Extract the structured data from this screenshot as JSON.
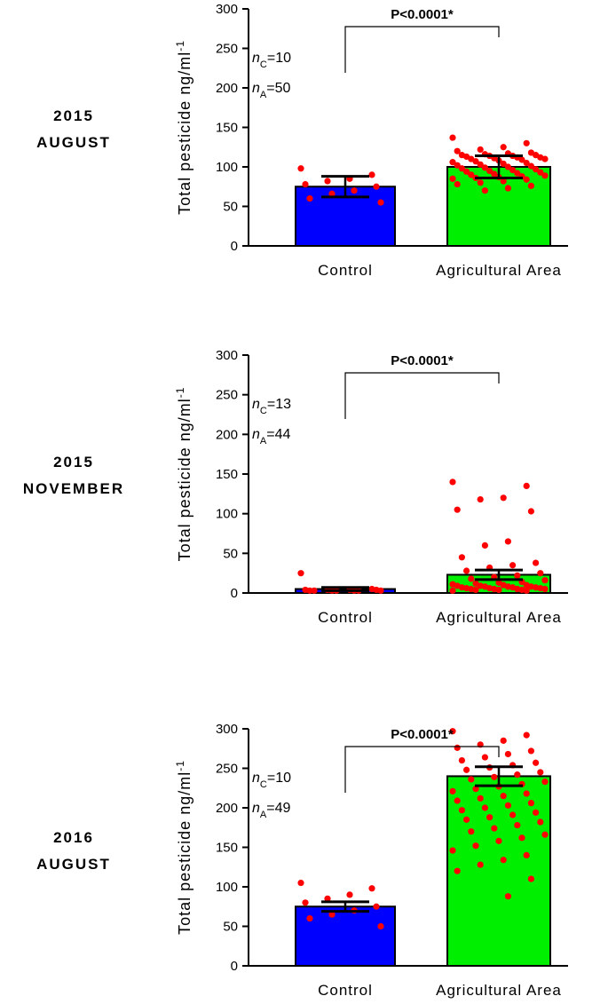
{
  "chart_data": [
    {
      "type": "bar",
      "panel_label": [
        "2015",
        "AUGUST"
      ],
      "categories": [
        "Control",
        "Agricultural Area"
      ],
      "values": [
        75,
        100
      ],
      "sem": [
        13,
        14
      ],
      "ylabel": "Total pesticide",
      "yunit_base": "ng/ml",
      "yunit_exp": "-1",
      "ylim": [
        0,
        300
      ],
      "yticks": [
        "0",
        "50",
        "100",
        "150",
        "200",
        "250",
        "300"
      ],
      "p_value": "P<0.0001*",
      "n_labels": [
        {
          "sym": "n",
          "sub": "C",
          "val": "=10"
        },
        {
          "sym": "n",
          "sub": "A",
          "val": "=50"
        }
      ],
      "bar_colors": [
        "#0000ff",
        "#00ee00"
      ],
      "point_color": "#ff0000",
      "points": [
        [
          98,
          90,
          85,
          82,
          78,
          75,
          70,
          66,
          60,
          55
        ],
        [
          137,
          130,
          125,
          122,
          120,
          118,
          117,
          116,
          115,
          115,
          114,
          114,
          113,
          112,
          112,
          111,
          110,
          110,
          109,
          108,
          107,
          106,
          105,
          104,
          103,
          102,
          101,
          100,
          99,
          98,
          97,
          96,
          95,
          94,
          93,
          92,
          91,
          90,
          89,
          88,
          87,
          86,
          85,
          84,
          82,
          80,
          78,
          76,
          73,
          70
        ]
      ]
    },
    {
      "type": "bar",
      "panel_label": [
        "2015",
        "NOVEMBER"
      ],
      "categories": [
        "Control",
        "Agricultural Area"
      ],
      "values": [
        5,
        23
      ],
      "sem": [
        2,
        6
      ],
      "ylabel": "Total pesticide",
      "yunit_base": "ng/ml",
      "yunit_exp": "-1",
      "ylim": [
        0,
        300
      ],
      "yticks": [
        "0",
        "50",
        "100",
        "150",
        "200",
        "250",
        "300"
      ],
      "p_value": "P<0.0001*",
      "n_labels": [
        {
          "sym": "n",
          "sub": "C",
          "val": "=13"
        },
        {
          "sym": "n",
          "sub": "A",
          "val": "=44"
        }
      ],
      "bar_colors": [
        "#0000ff",
        "#00ee00"
      ],
      "point_color": "#ff0000",
      "points": [
        [
          25,
          5,
          4,
          4,
          4,
          4,
          3,
          3,
          3,
          3,
          3,
          3,
          3
        ],
        [
          140,
          135,
          120,
          118,
          105,
          103,
          65,
          60,
          45,
          38,
          35,
          32,
          28,
          25,
          22,
          20,
          18,
          16,
          14,
          13,
          12,
          11,
          10,
          10,
          9,
          9,
          8,
          8,
          8,
          7,
          7,
          7,
          6,
          6,
          6,
          5,
          5,
          5,
          5,
          4,
          4,
          4,
          3,
          3
        ]
      ]
    },
    {
      "type": "bar",
      "panel_label": [
        "2016",
        "AUGUST"
      ],
      "categories": [
        "Control",
        "Agricultural Area"
      ],
      "values": [
        75,
        240
      ],
      "sem": [
        6,
        12
      ],
      "ylabel": "Total pesticide",
      "yunit_base": "ng/ml",
      "yunit_exp": "-1",
      "ylim": [
        0,
        300
      ],
      "yticks": [
        "0",
        "50",
        "100",
        "150",
        "200",
        "250",
        "300"
      ],
      "p_value": "P<0.0001*",
      "n_labels": [
        {
          "sym": "n",
          "sub": "C",
          "val": "=10"
        },
        {
          "sym": "n",
          "sub": "A",
          "val": "=49"
        }
      ],
      "bar_colors": [
        "#0000ff",
        "#00ee00"
      ],
      "point_color": "#ff0000",
      "points": [
        [
          105,
          98,
          90,
          85,
          80,
          75,
          70,
          65,
          60,
          50
        ],
        [
          297,
          292,
          285,
          280,
          276,
          272,
          268,
          264,
          260,
          257,
          254,
          251,
          248,
          245,
          242,
          239,
          236,
          233,
          230,
          227,
          224,
          221,
          218,
          215,
          212,
          209,
          206,
          203,
          200,
          197,
          194,
          191,
          188,
          185,
          182,
          178,
          174,
          170,
          166,
          162,
          158,
          152,
          146,
          140,
          134,
          128,
          120,
          110,
          88
        ]
      ]
    }
  ]
}
